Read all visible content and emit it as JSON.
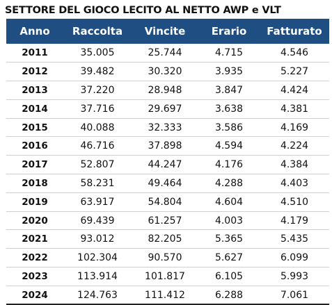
{
  "title": "SETTORE DEL GIOCO LECITO AL NETTO AWP e VLT",
  "columns": [
    "Anno",
    "Raccolta",
    "Vincite",
    "Erario",
    "Fatturato"
  ],
  "rows": [
    [
      "2011",
      "35.005",
      "25.744",
      "4.715",
      "4.546"
    ],
    [
      "2012",
      "39.482",
      "30.320",
      "3.935",
      "5.227"
    ],
    [
      "2013",
      "37.220",
      "28.948",
      "3.847",
      "4.424"
    ],
    [
      "2014",
      "37.716",
      "29.697",
      "3.638",
      "4.381"
    ],
    [
      "2015",
      "40.088",
      "32.333",
      "3.586",
      "4.169"
    ],
    [
      "2016",
      "46.716",
      "37.898",
      "4.594",
      "4.224"
    ],
    [
      "2017",
      "52.807",
      "44.247",
      "4.176",
      "4.384"
    ],
    [
      "2018",
      "58.231",
      "49.464",
      "4.288",
      "4.403"
    ],
    [
      "2019",
      "63.917",
      "54.804",
      "4.604",
      "4.510"
    ],
    [
      "2020",
      "69.439",
      "61.257",
      "4.003",
      "4.179"
    ],
    [
      "2021",
      "93.012",
      "82.205",
      "5.365",
      "5.435"
    ],
    [
      "2022",
      "102.304",
      "90.570",
      "5.627",
      "6.099"
    ],
    [
      "2023",
      "113.914",
      "101.817",
      "6.105",
      "5.993"
    ],
    [
      "2024",
      "124.763",
      "111.412",
      "6.288",
      "7.061"
    ]
  ],
  "colors": {
    "header_bg": "#1f4e82",
    "header_text": "#ffffff"
  }
}
